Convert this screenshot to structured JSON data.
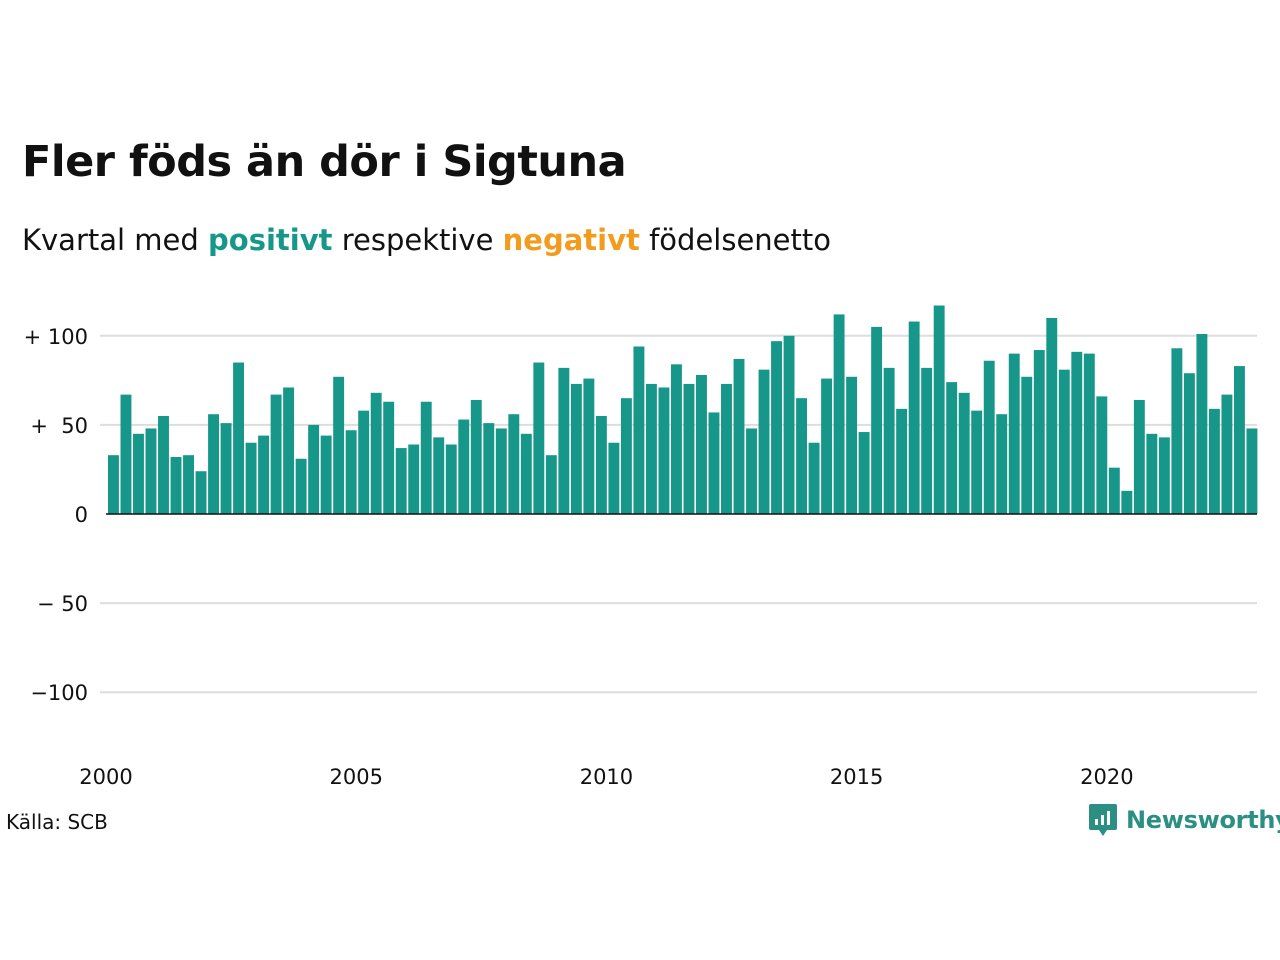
{
  "title": "Fler föds än dör i Sigtuna",
  "subtitle": {
    "prefix": "Kvartal med ",
    "positive": "positivt",
    "middle": " respektive ",
    "negative": "negativt",
    "suffix": " födelsenetto"
  },
  "source": "Källa: SCB",
  "brand": "Newsworthy",
  "colors": {
    "positive": "#16978a",
    "negative": "#f29c1d",
    "grid": "#dddddd",
    "brand": "#2b8f84"
  },
  "chart_data": {
    "type": "bar",
    "x_start": "2000Q1",
    "ylim": [
      -125,
      120
    ],
    "yticks": [
      {
        "value": 100,
        "label": "+ 100"
      },
      {
        "value": 50,
        "label": "+  50"
      },
      {
        "value": 0,
        "label": "0"
      },
      {
        "value": -50,
        "label": "− 50"
      },
      {
        "value": -100,
        "label": "−100"
      }
    ],
    "xticks": [
      "2000",
      "2005",
      "2010",
      "2015",
      "2020"
    ],
    "grid": true,
    "values": [
      33,
      67,
      45,
      48,
      55,
      32,
      33,
      24,
      56,
      51,
      85,
      40,
      44,
      67,
      71,
      31,
      50,
      44,
      77,
      47,
      58,
      68,
      63,
      37,
      39,
      63,
      43,
      39,
      53,
      64,
      51,
      48,
      56,
      45,
      85,
      33,
      82,
      73,
      76,
      55,
      40,
      65,
      94,
      73,
      71,
      84,
      73,
      78,
      57,
      73,
      87,
      48,
      81,
      97,
      100,
      65,
      40,
      76,
      112,
      77,
      46,
      105,
      82,
      59,
      108,
      82,
      117,
      74,
      68,
      58,
      86,
      56,
      90,
      77,
      92,
      110,
      81,
      91,
      90,
      66,
      26,
      13,
      64,
      45,
      43,
      93,
      79,
      101,
      59,
      67,
      83,
      48
    ]
  }
}
